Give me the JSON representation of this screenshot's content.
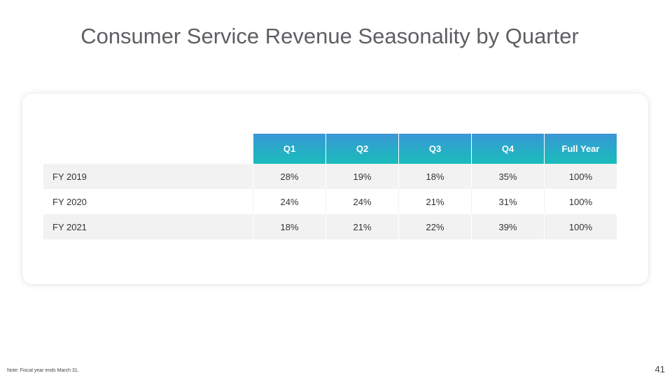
{
  "title": "Consumer Service Revenue Seasonality by Quarter",
  "table": {
    "columns": [
      "Q1",
      "Q2",
      "Q3",
      "Q4",
      "Full Year"
    ],
    "rows": [
      {
        "label": "FY 2019",
        "values": [
          "28%",
          "19%",
          "18%",
          "35%",
          "100%"
        ]
      },
      {
        "label": "FY 2020",
        "values": [
          "24%",
          "24%",
          "21%",
          "31%",
          "100%"
        ]
      },
      {
        "label": "FY 2021",
        "values": [
          "18%",
          "21%",
          "22%",
          "39%",
          "100%"
        ]
      }
    ]
  },
  "footer": {
    "note": "Note: Fiscal year ends March 31.",
    "page_number": "41"
  },
  "colors": {
    "header_gradient_top": "#3a96d6",
    "header_gradient_bottom": "#1bbcbc",
    "title": "#5d5f63",
    "row_shade": "#f2f2f2"
  }
}
